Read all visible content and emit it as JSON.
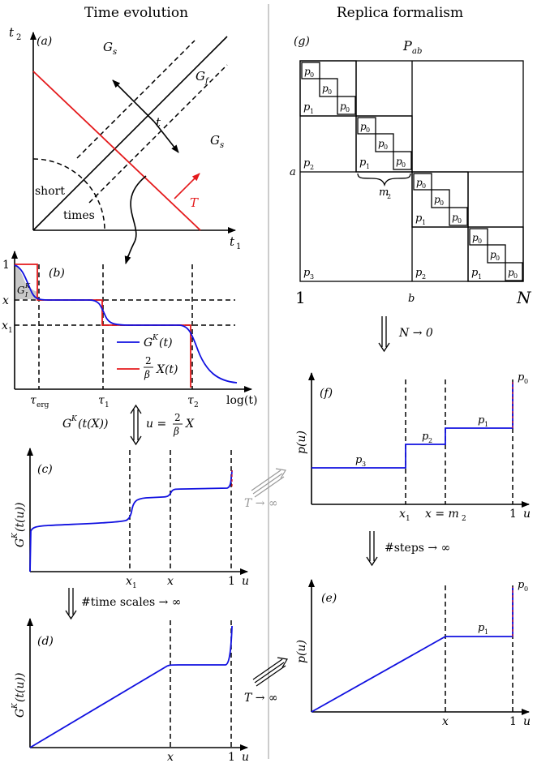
{
  "headings": {
    "left": "Time evolution",
    "right": "Replica formalism"
  },
  "panel_a": {
    "tag": "(a)",
    "y_axis": "t",
    "y_sub": "2",
    "x_axis": "t",
    "x_sub": "1",
    "gs_top": "G",
    "gs_right": "G",
    "s_sub": "s",
    "gf": "G",
    "f_sub": "f",
    "t_label": "t",
    "T_label": "T",
    "short": "short",
    "times": "times"
  },
  "panel_b": {
    "tag": "(b)",
    "tick_1": "1",
    "tick_x": "x",
    "tick_x1": "x",
    "x1_sub": "1",
    "gk_area": "G",
    "gk_area_sup": "K",
    "gk_area_sub": "I",
    "legend_blue": "G",
    "legend_blue_sup": "K",
    "legend_blue_tail": "(t)",
    "legend_red_num": "2",
    "legend_red_den": "β",
    "legend_red_tail": "X(t)",
    "tau_erg": "τ",
    "tau_erg_sub": "erg",
    "tau1": "τ",
    "tau1_sub": "1",
    "tau2": "τ",
    "tau2_sub": "2",
    "xlabel": "log(t)"
  },
  "mapping": {
    "left": "G",
    "left_sup": "K",
    "left_tail": "(t(X))",
    "u": "u =",
    "num": "2",
    "den": "β",
    "X": "X"
  },
  "panel_c": {
    "tag": "(c)",
    "ylabel": "G",
    "ylabel_sup": "K",
    "ylabel_tail": "(t(u))",
    "x1": "x",
    "x1_sub": "1",
    "x": "x",
    "one": "1",
    "u": "u"
  },
  "arrow_cd": "#time scales → ∞",
  "panel_d": {
    "tag": "(d)",
    "ylabel": "G",
    "ylabel_sup": "K",
    "ylabel_tail": "(t(u))",
    "x": "x",
    "one": "1",
    "u": "u"
  },
  "panel_g": {
    "tag": "(g)",
    "title": "P",
    "title_sub": "ab",
    "a": "a",
    "b": "b",
    "one": "1",
    "N": "N",
    "p0": "p",
    "s0": "0",
    "p1": "p",
    "s1": "1",
    "p2": "p",
    "s2": "2",
    "p3": "p",
    "s3": "3",
    "m2": "m",
    "m2_sub": "2"
  },
  "arrow_gf": "N → 0",
  "panel_f": {
    "tag": "(f)",
    "ylabel": "p(u)",
    "p0": "p",
    "s0": "0",
    "p1": "p",
    "s1": "1",
    "p2": "p",
    "s2": "2",
    "p3": "p",
    "s3": "3",
    "x1": "x",
    "x1_sub": "1",
    "xm2": "x = m",
    "xm2_sub": "2",
    "one": "1",
    "u": "u"
  },
  "arrow_fe": "#steps → ∞",
  "panel_e": {
    "tag": "(e)",
    "ylabel": "p(u)",
    "p0": "p",
    "s0": "0",
    "p1": "p",
    "s1": "1",
    "x": "x",
    "one": "1",
    "u": "u"
  },
  "T_inf_grey": "T → ∞",
  "T_inf_black": "T → ∞",
  "colors": {
    "blue": "#1010e0",
    "red": "#e41a1c",
    "grey": "#999999",
    "area": "#c8c8c8",
    "divider": "#bbbbbb"
  }
}
